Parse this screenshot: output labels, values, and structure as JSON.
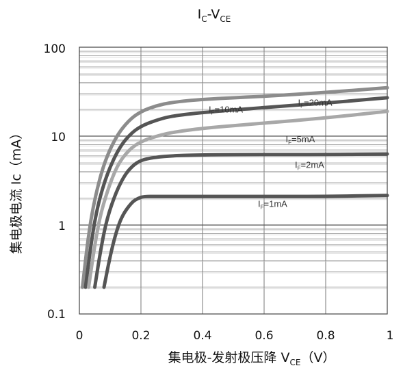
{
  "chart_data": {
    "type": "line",
    "title": {
      "main": "I",
      "sub1": "C",
      "mid": "-V",
      "sub2": "CE"
    },
    "xlabel": {
      "main": "集电极-发射极压降 V",
      "sub": "CE",
      "tail": "（V）"
    },
    "ylabel": "集电极电流 Ic（mA）",
    "x_ticks": [
      "0",
      "0.2",
      "0.4",
      "0.6",
      "0.8",
      "1"
    ],
    "y_ticks": [
      "0.1",
      "1",
      "10",
      "100"
    ],
    "xlim": [
      0,
      1
    ],
    "ylim": [
      0.1,
      100
    ],
    "y_scale": "log",
    "grid": true,
    "series": [
      {
        "name": "I_F=20mA",
        "label_main": "I",
        "label_sub": "F",
        "label_tail": "=20mA",
        "color": "#8c8c8c",
        "x": [
          0.01,
          0.03,
          0.05,
          0.08,
          0.12,
          0.16,
          0.2,
          0.25,
          0.3,
          0.4,
          0.6,
          0.8,
          1.0
        ],
        "y": [
          0.2,
          0.8,
          2.0,
          5.0,
          10.0,
          15.0,
          19.0,
          22.0,
          24.0,
          26.0,
          28.0,
          31.0,
          35.0
        ]
      },
      {
        "name": "I_F=10mA",
        "label_main": "I",
        "label_sub": "F",
        "label_tail": "=10mA",
        "color": "#555555",
        "x": [
          0.02,
          0.04,
          0.06,
          0.09,
          0.13,
          0.17,
          0.21,
          0.26,
          0.3,
          0.4,
          0.6,
          0.8,
          1.0
        ],
        "y": [
          0.2,
          0.7,
          1.7,
          3.8,
          7.5,
          11.0,
          13.5,
          15.5,
          16.8,
          18.5,
          21.0,
          23.5,
          27.0
        ]
      },
      {
        "name": "I_F=5mA",
        "label_main": "I",
        "label_sub": "F",
        "label_tail": "=5mA",
        "color": "#a8a8a8",
        "x": [
          0.03,
          0.05,
          0.07,
          0.1,
          0.13,
          0.17,
          0.21,
          0.26,
          0.3,
          0.4,
          0.6,
          0.8,
          1.0
        ],
        "y": [
          0.2,
          0.6,
          1.4,
          3.0,
          5.2,
          7.5,
          9.0,
          10.2,
          11.0,
          12.3,
          14.0,
          16.0,
          19.0
        ]
      },
      {
        "name": "I_F=2mA",
        "label_main": "I",
        "label_sub": "F",
        "label_tail": "=2mA",
        "color": "#555555",
        "x": [
          0.05,
          0.07,
          0.09,
          0.12,
          0.15,
          0.18,
          0.21,
          0.25,
          0.3,
          0.35,
          0.5,
          0.8,
          1.0
        ],
        "y": [
          0.2,
          0.55,
          1.2,
          2.4,
          3.8,
          4.9,
          5.5,
          5.8,
          6.0,
          6.1,
          6.2,
          6.2,
          6.3
        ]
      },
      {
        "name": "I_F=1mA",
        "label_main": "I",
        "label_sub": "F",
        "label_tail": "=1mA",
        "color": "#555555",
        "x": [
          0.08,
          0.1,
          0.12,
          0.14,
          0.17,
          0.19,
          0.21,
          0.25,
          0.3,
          0.5,
          0.8,
          1.0
        ],
        "y": [
          0.2,
          0.45,
          0.85,
          1.3,
          1.8,
          2.0,
          2.1,
          2.1,
          2.1,
          2.1,
          2.1,
          2.15
        ]
      }
    ],
    "annotation_positions": [
      {
        "x": 0.71,
        "y": 22.0
      },
      {
        "x": 0.42,
        "y": 18.5
      },
      {
        "x": 0.67,
        "y": 8.5
      },
      {
        "x": 0.7,
        "y": 4.4
      },
      {
        "x": 0.58,
        "y": 1.6
      }
    ]
  }
}
